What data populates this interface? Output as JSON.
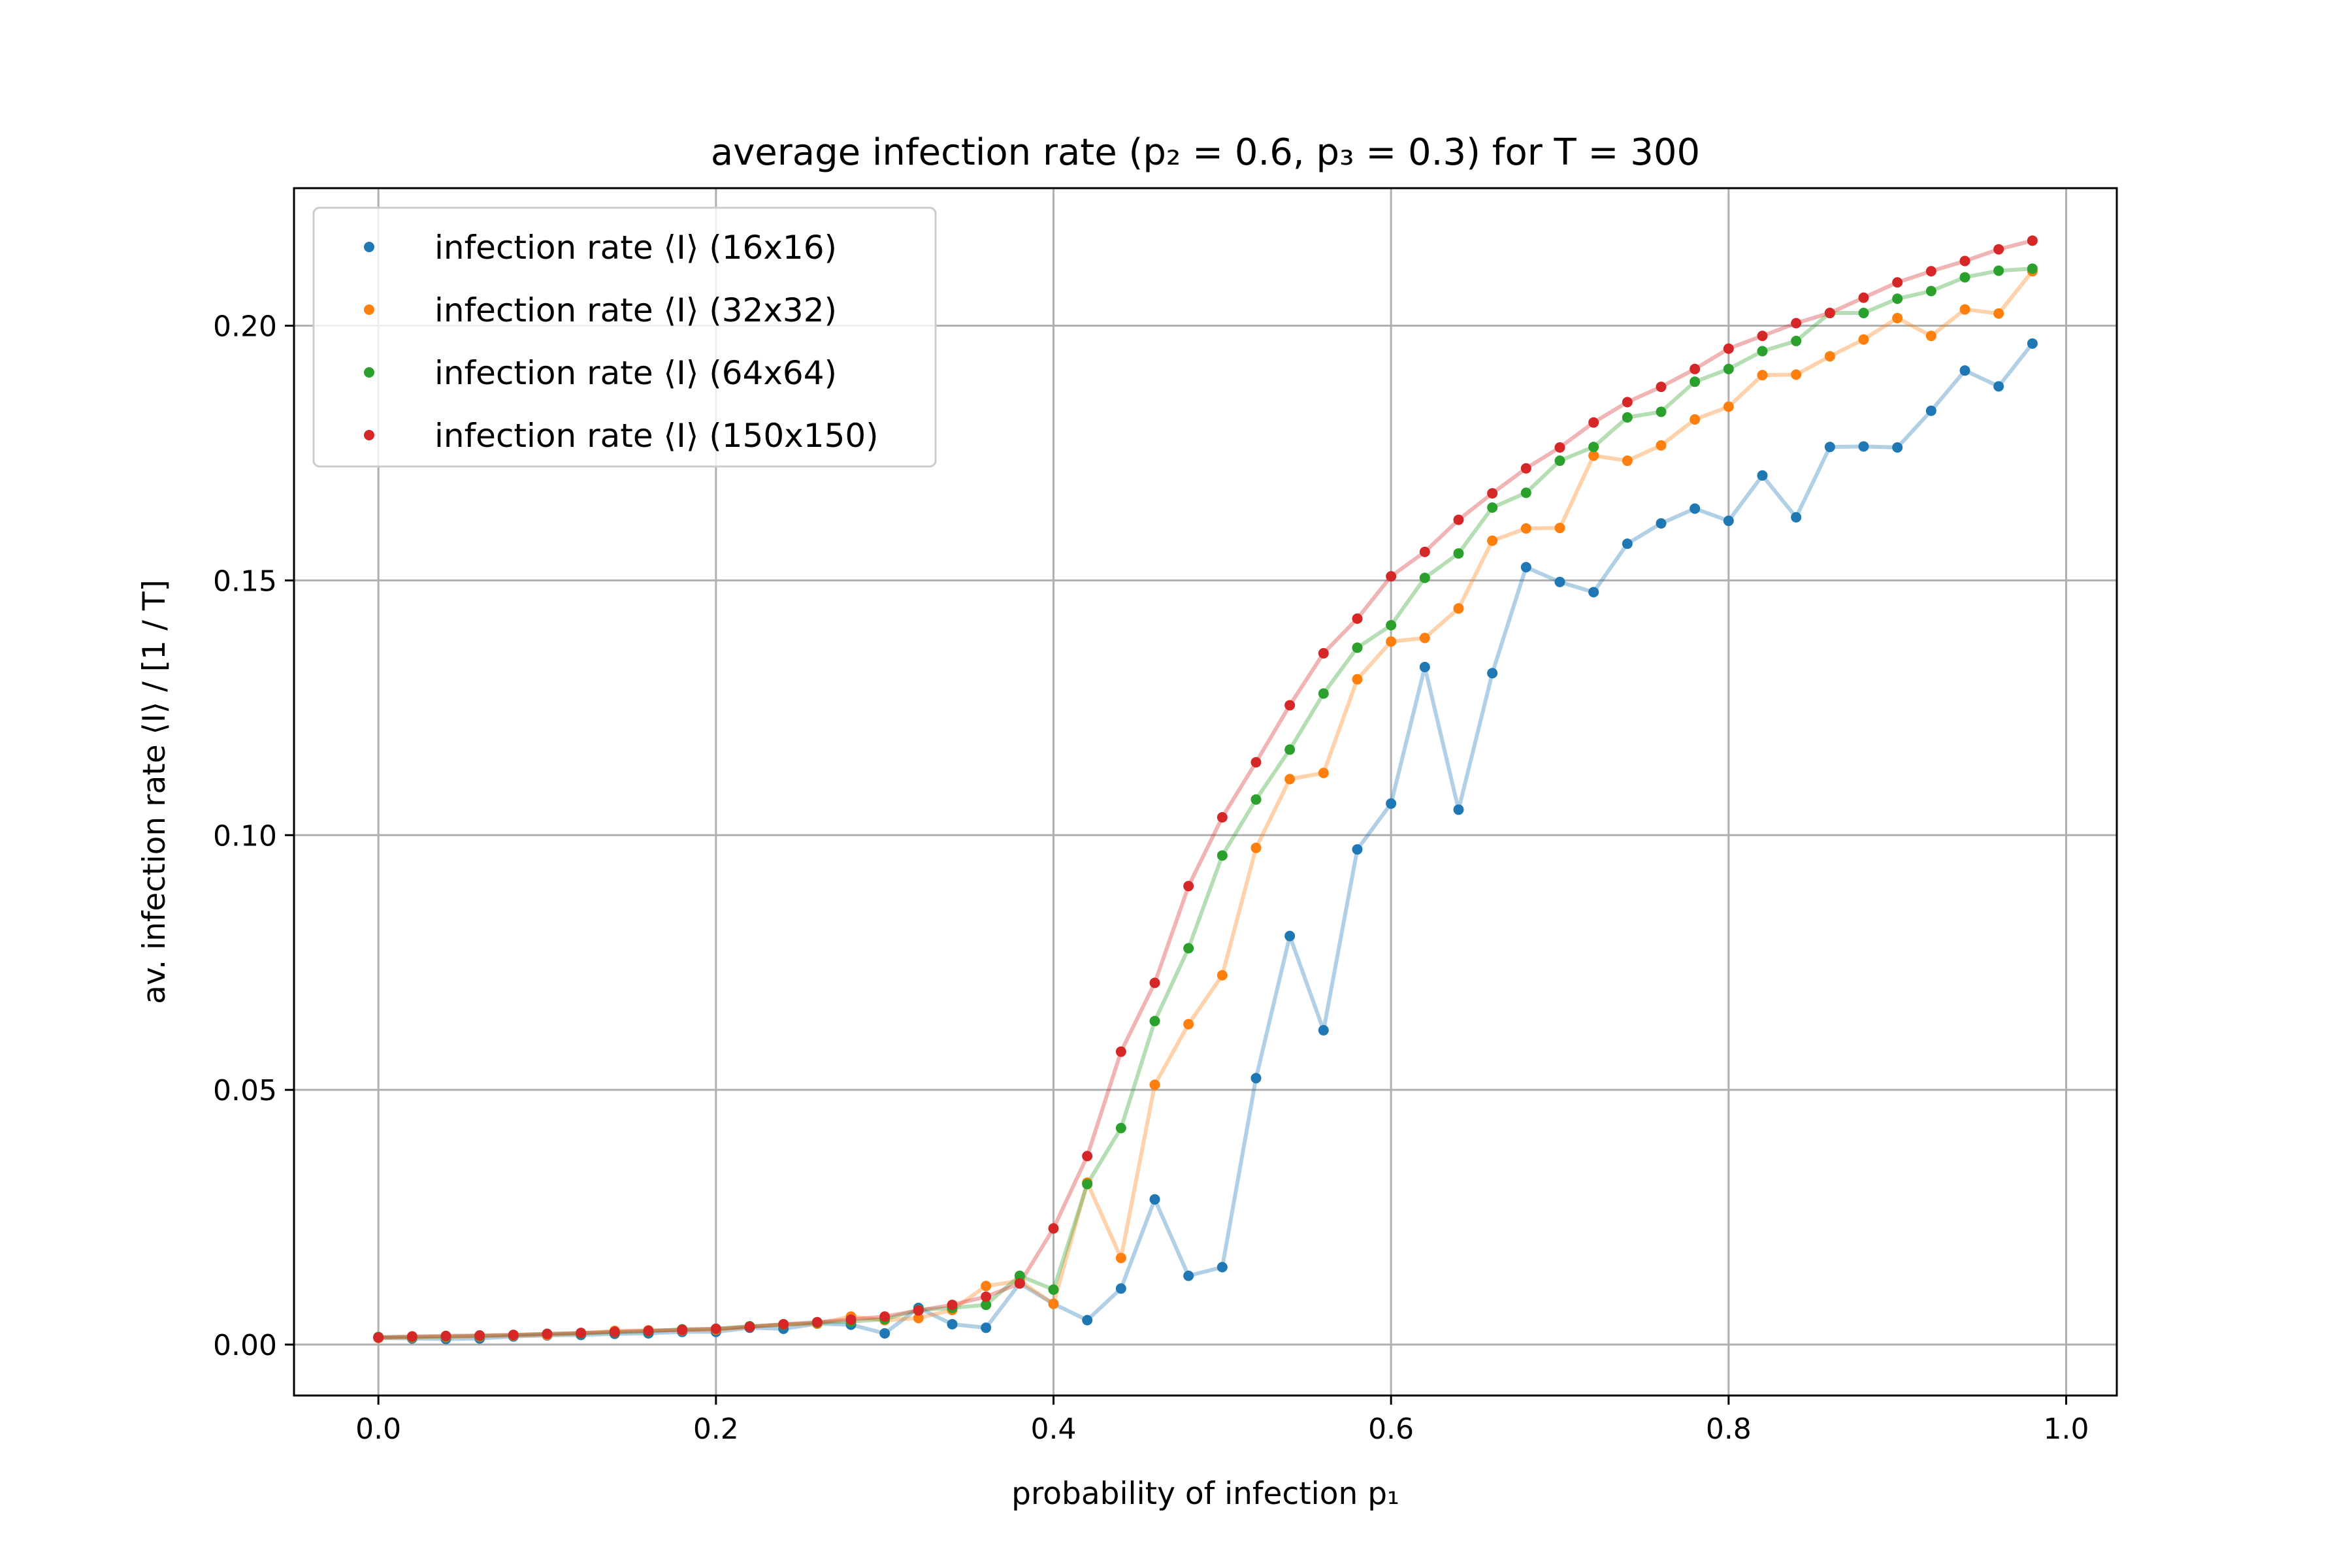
{
  "chart_data": {
    "type": "line",
    "title": "average infection rate (p₂ = 0.6, p₃ = 0.3) for T = 300",
    "xlabel": "probability of infection p₁",
    "ylabel": "av. infection rate ⟨I⟩ / [1 / T]",
    "xlim": [
      -0.05,
      1.03
    ],
    "ylim": [
      -0.01,
      0.227
    ],
    "xticks": [
      0.0,
      0.2,
      0.4,
      0.6,
      0.8,
      1.0
    ],
    "xtick_labels": [
      "0.0",
      "0.2",
      "0.4",
      "0.6",
      "0.8",
      "1.0"
    ],
    "yticks": [
      0.0,
      0.05,
      0.1,
      0.15,
      0.2
    ],
    "ytick_labels": [
      "0.00",
      "0.05",
      "0.10",
      "0.15",
      "0.20"
    ],
    "grid": true,
    "legend_position": "top-left",
    "x": [
      0.0,
      0.02,
      0.04,
      0.06,
      0.08,
      0.1,
      0.12,
      0.14,
      0.16,
      0.18,
      0.2,
      0.22,
      0.24,
      0.26,
      0.28,
      0.3,
      0.32,
      0.34,
      0.36,
      0.38,
      0.4,
      0.42,
      0.44,
      0.46,
      0.48,
      0.5,
      0.52,
      0.54,
      0.56,
      0.58,
      0.6,
      0.62,
      0.64,
      0.66,
      0.68,
      0.7,
      0.72,
      0.74,
      0.76,
      0.78,
      0.8,
      0.82,
      0.84,
      0.86,
      0.88,
      0.9,
      0.92,
      0.94,
      0.96,
      0.98
    ],
    "series": [
      {
        "name": "infection rate ⟨I⟩ (16x16)",
        "color": "#1f77b4",
        "values": [
          0.0013,
          0.0012,
          0.0011,
          0.0012,
          0.0016,
          0.0018,
          0.0019,
          0.0021,
          0.0022,
          0.0025,
          0.0025,
          0.0033,
          0.0031,
          0.0041,
          0.0039,
          0.0022,
          0.0072,
          0.004,
          0.0033,
          0.012,
          0.008,
          0.0048,
          0.011,
          0.0285,
          0.0135,
          0.0152,
          0.0523,
          0.0802,
          0.0617,
          0.0972,
          0.1062,
          0.133,
          0.105,
          0.1318,
          0.1526,
          0.1497,
          0.1477,
          0.1572,
          0.1612,
          0.1641,
          0.1617,
          0.1706,
          0.1624,
          0.1762,
          0.1763,
          0.1761,
          0.1833,
          0.1912,
          0.1881,
          0.1965
        ]
      },
      {
        "name": "infection rate ⟨I⟩ (32x32)",
        "color": "#ff7f0e",
        "values": [
          0.0013,
          0.0014,
          0.0015,
          0.0016,
          0.0018,
          0.0019,
          0.0022,
          0.0027,
          0.0028,
          0.0028,
          0.0029,
          0.0035,
          0.0039,
          0.0041,
          0.0055,
          0.0048,
          0.0052,
          0.0068,
          0.0115,
          0.0125,
          0.008,
          0.0318,
          0.017,
          0.051,
          0.0629,
          0.0725,
          0.0975,
          0.111,
          0.1122,
          0.1306,
          0.138,
          0.1387,
          0.1445,
          0.1578,
          0.1602,
          0.1603,
          0.1745,
          0.1735,
          0.1765,
          0.1816,
          0.1841,
          0.1903,
          0.1904,
          0.194,
          0.1973,
          0.2015,
          0.198,
          0.2032,
          0.2024,
          0.2107
        ]
      },
      {
        "name": "infection rate ⟨I⟩ (64x64)",
        "color": "#2ca02c",
        "values": [
          0.0015,
          0.0015,
          0.0016,
          0.0017,
          0.0019,
          0.0021,
          0.0022,
          0.0024,
          0.0026,
          0.003,
          0.0031,
          0.0036,
          0.0039,
          0.0043,
          0.0045,
          0.005,
          0.0068,
          0.0072,
          0.0078,
          0.0135,
          0.0108,
          0.0315,
          0.0425,
          0.0635,
          0.0778,
          0.096,
          0.107,
          0.1168,
          0.1278,
          0.1368,
          0.1412,
          0.1505,
          0.1553,
          0.1643,
          0.1672,
          0.1735,
          0.1762,
          0.182,
          0.1831,
          0.189,
          0.1915,
          0.195,
          0.197,
          0.2025,
          0.2025,
          0.2053,
          0.2068,
          0.2095,
          0.2108,
          0.2112
        ]
      },
      {
        "name": "infection rate ⟨I⟩ (150x150)",
        "color": "#d62728",
        "values": [
          0.0014,
          0.0016,
          0.0017,
          0.0018,
          0.0019,
          0.0021,
          0.0023,
          0.0025,
          0.0027,
          0.0029,
          0.0031,
          0.0035,
          0.004,
          0.0044,
          0.0049,
          0.0055,
          0.0067,
          0.0078,
          0.0094,
          0.012,
          0.0228,
          0.037,
          0.0575,
          0.071,
          0.09,
          0.1035,
          0.1143,
          0.1255,
          0.1357,
          0.1425,
          0.1508,
          0.1556,
          0.1619,
          0.1671,
          0.172,
          0.1761,
          0.181,
          0.185,
          0.188,
          0.1915,
          0.1955,
          0.198,
          0.2005,
          0.2025,
          0.2055,
          0.2085,
          0.2107,
          0.2127,
          0.215,
          0.2167
        ]
      }
    ]
  }
}
